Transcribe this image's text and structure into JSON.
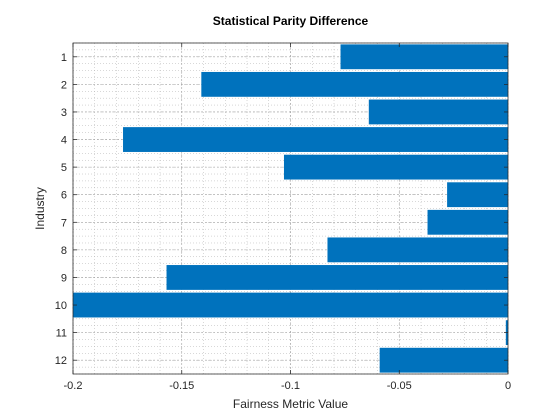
{
  "chart_data": {
    "type": "bar",
    "orientation": "horizontal",
    "title": "Statistical Parity Difference",
    "xlabel": "Fairness Metric Value",
    "ylabel": "Industry",
    "categories": [
      "1",
      "2",
      "3",
      "4",
      "5",
      "6",
      "7",
      "8",
      "9",
      "10",
      "11",
      "12"
    ],
    "values": [
      -0.077,
      -0.141,
      -0.064,
      -0.177,
      -0.103,
      -0.028,
      -0.037,
      -0.083,
      -0.157,
      -0.2,
      -0.001,
      -0.059
    ],
    "xlim": [
      -0.2,
      0
    ],
    "x_ticks": [
      -0.2,
      -0.15,
      -0.1,
      -0.05,
      0
    ],
    "x_tick_labels": [
      "-0.2",
      "-0.15",
      "-0.1",
      "-0.05",
      "0"
    ],
    "grid": true,
    "minor_grid": true,
    "bar_color": "#0072BD",
    "legend": "none"
  }
}
